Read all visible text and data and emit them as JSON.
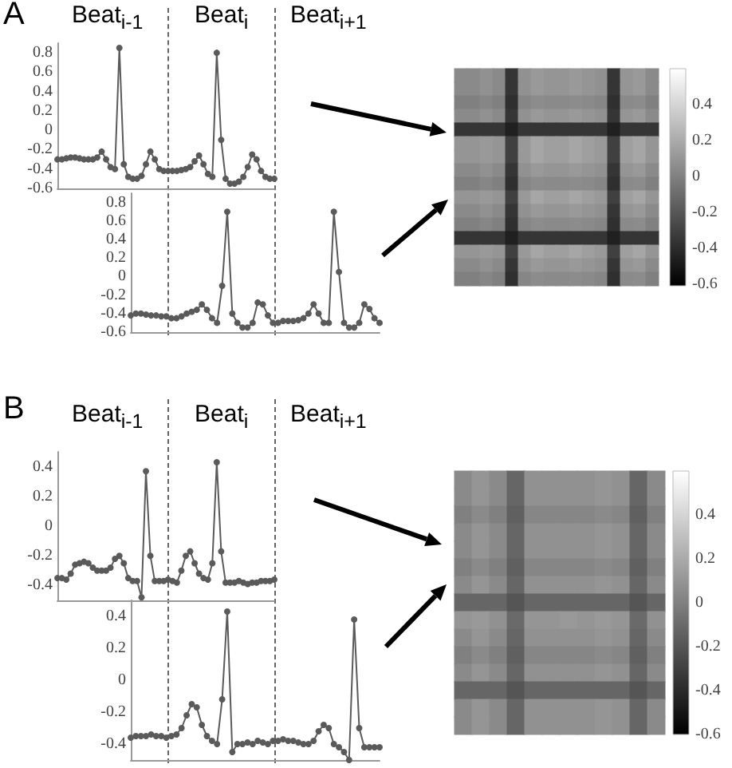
{
  "chart_data": [
    {
      "type": "line",
      "annotations": [
        "A",
        "Beat$_{i-1}$",
        "Beat$_{i}$",
        "Beat$_{i+1}$"
      ],
      "categories": [
        null,
        null,
        null,
        null,
        null,
        null,
        null,
        null,
        null,
        null,
        null,
        null,
        null,
        null,
        null,
        null,
        null,
        null,
        null,
        null,
        null,
        null,
        null,
        null,
        null,
        null,
        null,
        null,
        null,
        null,
        null,
        null,
        null,
        null,
        null,
        null,
        null,
        null,
        null,
        null,
        null,
        null,
        null,
        null,
        null,
        null,
        null,
        null,
        null,
        null
      ],
      "series": [
        {
          "color": "#5a5a5a",
          "values": [
            -0.3,
            -0.3,
            -0.29,
            -0.28,
            -0.28,
            -0.29,
            -0.3,
            -0.3,
            -0.3,
            -0.28,
            -0.22,
            -0.3,
            -0.38,
            -0.4,
            0.85,
            -0.35,
            -0.48,
            -0.5,
            -0.5,
            -0.47,
            -0.35,
            -0.22,
            -0.3,
            -0.4,
            -0.42,
            -0.42,
            -0.42,
            -0.42,
            -0.41,
            -0.4,
            -0.38,
            -0.32,
            -0.26,
            -0.35,
            -0.45,
            -0.48,
            0.8,
            -0.1,
            -0.5,
            -0.55,
            -0.55,
            -0.53,
            -0.48,
            -0.38,
            -0.25,
            -0.3,
            -0.42,
            -0.48,
            -0.5,
            -0.5
          ]
        }
      ],
      "ylim": [
        -0.6,
        0.9
      ],
      "yticks": [
        -0.6,
        -0.4,
        -0.2,
        0,
        0.2,
        0.4,
        0.6,
        0.8
      ],
      "tick_labels": "y",
      "marker": "circle",
      "line_style": "solid"
    },
    {
      "type": "line",
      "categories": [
        null,
        null,
        null,
        null,
        null,
        null,
        null,
        null,
        null,
        null,
        null,
        null,
        null,
        null,
        null,
        null,
        null,
        null,
        null,
        null,
        null,
        null,
        null,
        null,
        null,
        null,
        null,
        null,
        null,
        null,
        null,
        null,
        null,
        null,
        null,
        null,
        null,
        null,
        null,
        null,
        null,
        null,
        null,
        null,
        null,
        null,
        null,
        null,
        null,
        null
      ],
      "series": [
        {
          "color": "#5a5a5a",
          "values": [
            -0.42,
            -0.4,
            -0.4,
            -0.41,
            -0.42,
            -0.42,
            -0.43,
            -0.43,
            -0.45,
            -0.45,
            -0.43,
            -0.4,
            -0.38,
            -0.36,
            -0.3,
            -0.36,
            -0.45,
            -0.5,
            -0.1,
            0.7,
            -0.4,
            -0.5,
            -0.55,
            -0.55,
            -0.5,
            -0.28,
            -0.3,
            -0.42,
            -0.5,
            -0.5,
            -0.48,
            -0.48,
            -0.48,
            -0.47,
            -0.45,
            -0.4,
            -0.3,
            -0.4,
            -0.5,
            -0.5,
            0.7,
            0.05,
            -0.5,
            -0.55,
            -0.55,
            -0.5,
            -0.3,
            -0.35,
            -0.45,
            -0.5
          ]
        }
      ],
      "ylim": [
        -0.6,
        0.9
      ],
      "yticks": [
        -0.6,
        -0.4,
        -0.2,
        0,
        0.2,
        0.4,
        0.6,
        0.8
      ],
      "tick_labels": "y",
      "marker": "circle",
      "line_style": "solid"
    },
    {
      "type": "heatmap",
      "categories": [
        null,
        null,
        null,
        null,
        null,
        null,
        null,
        null,
        null,
        null,
        null,
        null,
        null,
        null,
        null,
        null
      ],
      "y_categories": [
        null,
        null,
        null,
        null,
        null,
        null,
        null,
        null,
        null,
        null,
        null,
        null,
        null,
        null,
        null,
        null
      ],
      "cells": [
        [
          0.05,
          0.05,
          0.08,
          0.05,
          -0.35,
          0.08,
          0.12,
          0.1,
          0.1,
          0.12,
          0.1,
          0.08,
          -0.35,
          0.1,
          0.12,
          0.05
        ],
        [
          0.05,
          0.05,
          0.08,
          0.05,
          -0.35,
          0.08,
          0.12,
          0.1,
          0.1,
          0.12,
          0.1,
          0.08,
          -0.35,
          0.1,
          0.12,
          0.05
        ],
        [
          0.0,
          0.0,
          0.03,
          0.0,
          -0.38,
          0.03,
          0.06,
          0.05,
          0.05,
          0.06,
          0.05,
          0.03,
          -0.38,
          0.05,
          0.06,
          0.0
        ],
        [
          0.05,
          0.05,
          0.08,
          0.05,
          -0.35,
          0.08,
          0.12,
          0.1,
          0.1,
          0.12,
          0.1,
          0.08,
          -0.35,
          0.1,
          0.12,
          0.05
        ],
        [
          -0.35,
          -0.35,
          -0.35,
          -0.35,
          -0.45,
          -0.35,
          -0.35,
          -0.35,
          -0.35,
          -0.35,
          -0.35,
          -0.35,
          -0.45,
          -0.35,
          -0.35,
          -0.35
        ],
        [
          0.1,
          0.1,
          0.12,
          0.1,
          -0.3,
          0.12,
          0.18,
          0.15,
          0.15,
          0.18,
          0.15,
          0.12,
          -0.3,
          0.15,
          0.18,
          0.1
        ],
        [
          0.1,
          0.1,
          0.12,
          0.1,
          -0.3,
          0.12,
          0.18,
          0.15,
          0.15,
          0.18,
          0.15,
          0.12,
          -0.3,
          0.15,
          0.18,
          0.1
        ],
        [
          0.05,
          0.05,
          0.08,
          0.05,
          -0.35,
          0.08,
          0.12,
          0.1,
          0.1,
          0.12,
          0.1,
          0.08,
          -0.35,
          0.1,
          0.12,
          0.05
        ],
        [
          0.0,
          0.0,
          0.03,
          0.0,
          -0.38,
          0.03,
          0.06,
          0.05,
          0.05,
          0.06,
          0.05,
          0.03,
          -0.38,
          0.05,
          0.06,
          0.0
        ],
        [
          0.1,
          0.1,
          0.12,
          0.1,
          -0.3,
          0.12,
          0.18,
          0.15,
          0.15,
          0.18,
          0.15,
          0.12,
          -0.3,
          0.15,
          0.18,
          0.1
        ],
        [
          0.05,
          0.05,
          0.08,
          0.05,
          -0.35,
          0.08,
          0.12,
          0.1,
          0.1,
          0.12,
          0.1,
          0.08,
          -0.35,
          0.1,
          0.12,
          0.05
        ],
        [
          0.0,
          0.0,
          0.03,
          0.0,
          -0.38,
          0.03,
          0.06,
          0.05,
          0.05,
          0.06,
          0.05,
          0.03,
          -0.38,
          0.05,
          0.06,
          0.0
        ],
        [
          -0.35,
          -0.35,
          -0.35,
          -0.35,
          -0.45,
          -0.35,
          -0.35,
          -0.35,
          -0.35,
          -0.35,
          -0.35,
          -0.35,
          -0.45,
          -0.35,
          -0.35,
          -0.35
        ],
        [
          0.1,
          0.1,
          0.12,
          0.1,
          -0.3,
          0.12,
          0.18,
          0.15,
          0.15,
          0.18,
          0.15,
          0.12,
          -0.3,
          0.15,
          0.18,
          0.1
        ],
        [
          0.05,
          0.05,
          0.08,
          0.05,
          -0.35,
          0.08,
          0.12,
          0.1,
          0.1,
          0.12,
          0.1,
          0.08,
          -0.35,
          0.1,
          0.12,
          0.05
        ],
        [
          0.0,
          0.0,
          0.03,
          0.0,
          -0.38,
          0.03,
          0.06,
          0.05,
          0.05,
          0.06,
          0.05,
          0.03,
          -0.38,
          0.05,
          0.06,
          0.0
        ]
      ],
      "clim": [
        -0.6,
        0.6
      ],
      "cticks": [
        -0.6,
        -0.4,
        -0.2,
        0,
        0.2,
        0.4
      ],
      "tick_labels": false
    },
    {
      "type": "line",
      "annotations": [
        "B",
        "Beat$_{i-1}$",
        "Beat$_{i}$",
        "Beat$_{i+1}$"
      ],
      "categories": [
        null,
        null,
        null,
        null,
        null,
        null,
        null,
        null,
        null,
        null,
        null,
        null,
        null,
        null,
        null,
        null,
        null,
        null,
        null,
        null,
        null,
        null,
        null,
        null,
        null,
        null,
        null,
        null,
        null,
        null,
        null,
        null,
        null,
        null,
        null,
        null,
        null,
        null,
        null,
        null,
        null,
        null,
        null,
        null,
        null,
        null,
        null,
        null,
        null,
        null
      ],
      "series": [
        {
          "color": "#5a5a5a",
          "values": [
            -0.35,
            -0.35,
            -0.36,
            -0.32,
            -0.26,
            -0.25,
            -0.24,
            -0.25,
            -0.28,
            -0.3,
            -0.3,
            -0.3,
            -0.28,
            -0.22,
            -0.2,
            -0.25,
            -0.35,
            -0.37,
            -0.37,
            -0.48,
            0.37,
            -0.2,
            -0.37,
            -0.37,
            -0.37,
            -0.36,
            -0.37,
            -0.38,
            -0.3,
            -0.2,
            -0.17,
            -0.25,
            -0.32,
            -0.35,
            -0.36,
            -0.25,
            0.43,
            -0.17,
            -0.38,
            -0.38,
            -0.38,
            -0.37,
            -0.38,
            -0.39,
            -0.38,
            -0.38,
            -0.37,
            -0.37,
            -0.37,
            -0.36
          ]
        }
      ],
      "ylim": [
        -0.5,
        0.5
      ],
      "yticks": [
        -0.4,
        -0.2,
        0,
        0.2,
        0.4
      ],
      "tick_labels": "y",
      "marker": "circle",
      "line_style": "solid"
    },
    {
      "type": "line",
      "categories": [
        null,
        null,
        null,
        null,
        null,
        null,
        null,
        null,
        null,
        null,
        null,
        null,
        null,
        null,
        null,
        null,
        null,
        null,
        null,
        null,
        null,
        null,
        null,
        null,
        null,
        null,
        null,
        null,
        null,
        null,
        null,
        null,
        null,
        null,
        null,
        null,
        null,
        null,
        null,
        null,
        null,
        null,
        null,
        null,
        null,
        null,
        null,
        null,
        null,
        null
      ],
      "series": [
        {
          "color": "#5a5a5a",
          "values": [
            -0.36,
            -0.35,
            -0.35,
            -0.35,
            -0.34,
            -0.35,
            -0.35,
            -0.36,
            -0.35,
            -0.34,
            -0.3,
            -0.22,
            -0.15,
            -0.17,
            -0.28,
            -0.35,
            -0.38,
            -0.4,
            -0.12,
            0.43,
            -0.45,
            -0.4,
            -0.4,
            -0.39,
            -0.4,
            -0.38,
            -0.39,
            -0.4,
            -0.38,
            -0.38,
            -0.37,
            -0.38,
            -0.38,
            -0.39,
            -0.4,
            -0.4,
            -0.38,
            -0.32,
            -0.28,
            -0.3,
            -0.4,
            -0.42,
            -0.45,
            -0.5,
            0.38,
            -0.3,
            -0.42,
            -0.42,
            -0.42,
            -0.42
          ]
        }
      ],
      "ylim": [
        -0.5,
        0.5
      ],
      "yticks": [
        -0.4,
        -0.2,
        0,
        0.2,
        0.4
      ],
      "tick_labels": "y",
      "marker": "circle",
      "line_style": "solid"
    },
    {
      "type": "heatmap",
      "categories": [
        null,
        null,
        null,
        null,
        null,
        null,
        null,
        null,
        null,
        null,
        null,
        null
      ],
      "y_categories": [
        null,
        null,
        null,
        null,
        null,
        null,
        null,
        null,
        null,
        null,
        null,
        null,
        null,
        null,
        null
      ],
      "cells": [
        [
          0.05,
          0.1,
          0.05,
          -0.12,
          0.08,
          0.08,
          0.08,
          0.08,
          0.1,
          0.08,
          -0.12,
          0.05
        ],
        [
          0.05,
          0.1,
          0.05,
          -0.12,
          0.08,
          0.08,
          0.08,
          0.08,
          0.1,
          0.08,
          -0.12,
          0.05
        ],
        [
          0.0,
          0.05,
          0.0,
          -0.15,
          0.03,
          0.03,
          0.03,
          0.03,
          0.05,
          0.03,
          -0.15,
          0.0
        ],
        [
          0.05,
          0.1,
          0.05,
          -0.12,
          0.08,
          0.08,
          0.08,
          0.08,
          0.1,
          0.08,
          -0.12,
          0.05
        ],
        [
          0.05,
          0.1,
          0.05,
          -0.12,
          0.08,
          0.08,
          0.08,
          0.08,
          0.1,
          0.08,
          -0.12,
          0.05
        ],
        [
          0.0,
          0.05,
          0.0,
          -0.15,
          0.03,
          0.03,
          0.03,
          0.03,
          0.05,
          0.03,
          -0.15,
          0.0
        ],
        [
          0.05,
          0.1,
          0.05,
          -0.12,
          0.08,
          0.08,
          0.08,
          0.08,
          0.1,
          0.08,
          -0.12,
          0.05
        ],
        [
          -0.12,
          -0.12,
          -0.12,
          -0.2,
          -0.12,
          -0.12,
          -0.12,
          -0.12,
          -0.12,
          -0.12,
          -0.2,
          -0.12
        ],
        [
          0.1,
          0.12,
          0.08,
          -0.1,
          0.1,
          0.1,
          0.12,
          0.1,
          0.12,
          0.1,
          -0.1,
          0.08
        ],
        [
          0.05,
          0.1,
          0.05,
          -0.12,
          0.08,
          0.08,
          0.08,
          0.08,
          0.1,
          0.08,
          -0.12,
          0.05
        ],
        [
          0.0,
          0.05,
          0.0,
          -0.15,
          0.03,
          0.03,
          0.03,
          0.03,
          0.05,
          0.03,
          -0.15,
          0.0
        ],
        [
          0.05,
          0.1,
          0.05,
          -0.12,
          0.08,
          0.08,
          0.08,
          0.08,
          0.1,
          0.08,
          -0.12,
          0.05
        ],
        [
          -0.12,
          -0.12,
          -0.12,
          -0.2,
          -0.12,
          -0.12,
          -0.12,
          -0.12,
          -0.12,
          -0.12,
          -0.2,
          -0.12
        ],
        [
          0.05,
          0.1,
          0.05,
          -0.12,
          0.08,
          0.08,
          0.08,
          0.08,
          0.1,
          0.08,
          -0.12,
          0.05
        ],
        [
          0.05,
          0.1,
          0.05,
          -0.12,
          0.08,
          0.08,
          0.08,
          0.08,
          0.1,
          0.08,
          -0.12,
          0.05
        ]
      ],
      "clim": [
        -0.6,
        0.6
      ],
      "cticks": [
        -0.6,
        -0.4,
        -0.2,
        0,
        0.2,
        0.4
      ],
      "tick_labels": false
    }
  ]
}
